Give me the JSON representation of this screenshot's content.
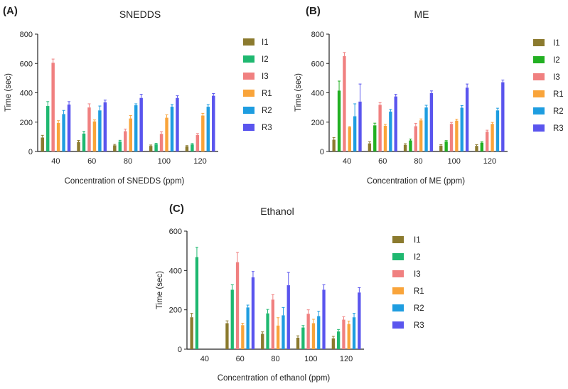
{
  "colors": {
    "I1": "#8B7A2E",
    "I2": "#1FB870",
    "I2_ME": "#22B022",
    "I3": "#F08080",
    "R1": "#F9A43A",
    "R2": "#1E9DE0",
    "R3": "#5A55EE",
    "axis": "#222222"
  },
  "chart_data": [
    {
      "type": "bar",
      "panel_label": "(A)",
      "title": "SNEDDS",
      "xlabel": "Concentration of SNEDDS (ppm)",
      "ylabel": "Time (sec)",
      "ylim": [
        0,
        800
      ],
      "yticks": [
        "0",
        "200",
        "400",
        "600",
        "800"
      ],
      "categories": [
        "40",
        "60",
        "80",
        "100",
        "120"
      ],
      "legend": [
        "I1",
        "I2",
        "I3",
        "R1",
        "R2",
        "R3"
      ],
      "series": [
        {
          "name": "I1",
          "values": [
            95,
            65,
            42,
            38,
            35
          ],
          "errors": [
            15,
            10,
            6,
            6,
            5
          ]
        },
        {
          "name": "I2",
          "values": [
            310,
            122,
            68,
            50,
            48
          ],
          "errors": [
            30,
            15,
            8,
            6,
            6
          ]
        },
        {
          "name": "I3",
          "values": [
            605,
            300,
            138,
            120,
            112
          ],
          "errors": [
            25,
            25,
            15,
            15,
            10
          ]
        },
        {
          "name": "R1",
          "values": [
            195,
            205,
            225,
            230,
            245
          ],
          "errors": [
            15,
            10,
            20,
            20,
            15
          ]
        },
        {
          "name": "R2",
          "values": [
            255,
            280,
            315,
            305,
            305
          ],
          "errors": [
            25,
            30,
            10,
            15,
            15
          ]
        },
        {
          "name": "R3",
          "values": [
            320,
            335,
            365,
            365,
            380
          ],
          "errors": [
            20,
            15,
            25,
            15,
            15
          ]
        }
      ]
    },
    {
      "type": "bar",
      "panel_label": "(B)",
      "title": "ME",
      "xlabel": "Concentration of ME (ppm)",
      "ylabel": "Time (sec)",
      "ylim": [
        0,
        800
      ],
      "yticks": [
        "0",
        "200",
        "400",
        "600",
        "800"
      ],
      "categories": [
        "40",
        "60",
        "80",
        "100",
        "120"
      ],
      "legend": [
        "I1",
        "I2",
        "I3",
        "R1",
        "R2",
        "R3"
      ],
      "series": [
        {
          "name": "I1",
          "values": [
            80,
            55,
            45,
            40,
            38
          ],
          "errors": [
            15,
            12,
            8,
            6,
            8
          ]
        },
        {
          "name": "I2",
          "values": [
            415,
            178,
            75,
            68,
            60
          ],
          "errors": [
            65,
            15,
            10,
            6,
            6
          ]
        },
        {
          "name": "I3",
          "values": [
            650,
            318,
            172,
            188,
            135
          ],
          "errors": [
            25,
            15,
            20,
            10,
            10
          ]
        },
        {
          "name": "R1",
          "values": [
            165,
            175,
            212,
            210,
            188
          ],
          "errors": [
            5,
            10,
            10,
            10,
            10
          ]
        },
        {
          "name": "R2",
          "values": [
            240,
            272,
            300,
            298,
            280
          ],
          "errors": [
            85,
            15,
            15,
            15,
            15
          ]
        },
        {
          "name": "R3",
          "values": [
            340,
            375,
            398,
            435,
            472
          ],
          "errors": [
            120,
            15,
            15,
            25,
            15
          ]
        }
      ]
    },
    {
      "type": "bar",
      "panel_label": "(C)",
      "title": "Ethanol",
      "xlabel": "Concentration of ethanol (ppm)",
      "ylabel": "Time (sec)",
      "ylim": [
        0,
        600
      ],
      "yticks": [
        "0",
        "200",
        "400",
        "600"
      ],
      "categories": [
        "40",
        "60",
        "80",
        "100",
        "120"
      ],
      "legend": [
        "I1",
        "I2",
        "I3",
        "R1",
        "R2",
        "R3"
      ],
      "series": [
        {
          "name": "I1",
          "values": [
            162,
            132,
            78,
            58,
            55
          ],
          "errors": [
            20,
            12,
            10,
            10,
            10
          ]
        },
        {
          "name": "I2",
          "values": [
            468,
            302,
            182,
            110,
            90
          ],
          "errors": [
            50,
            25,
            20,
            10,
            10
          ]
        },
        {
          "name": "I3",
          "values": [
            0,
            442,
            252,
            180,
            150
          ],
          "errors": [
            0,
            50,
            25,
            20,
            15
          ]
        },
        {
          "name": "R1",
          "values": [
            0,
            122,
            120,
            132,
            128
          ],
          "errors": [
            0,
            10,
            40,
            20,
            15
          ]
        },
        {
          "name": "R2",
          "values": [
            0,
            212,
            172,
            168,
            162
          ],
          "errors": [
            0,
            12,
            40,
            25,
            20
          ]
        },
        {
          "name": "R3",
          "values": [
            0,
            365,
            325,
            302,
            288
          ],
          "errors": [
            0,
            30,
            65,
            25,
            25
          ]
        }
      ]
    }
  ]
}
